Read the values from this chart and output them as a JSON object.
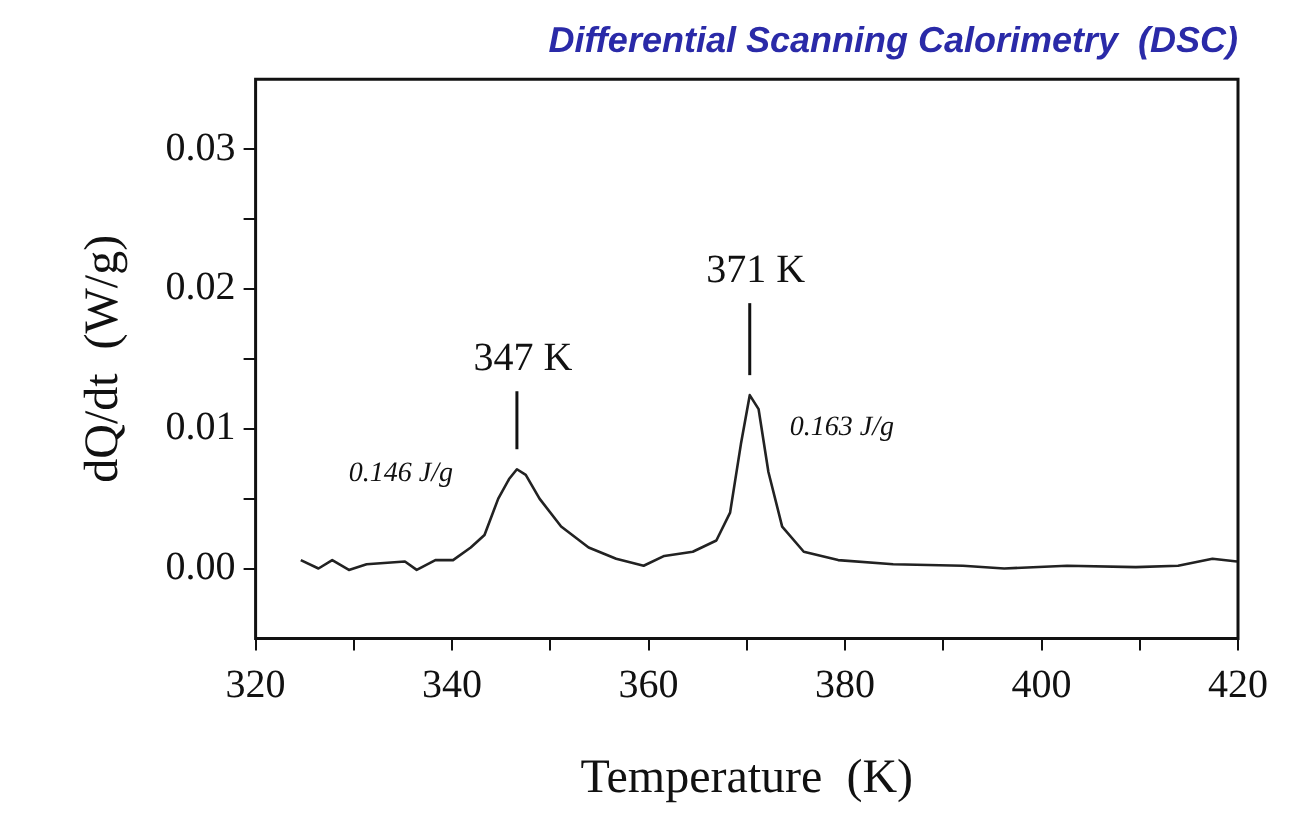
{
  "chart_data": {
    "type": "line",
    "title": "Differential Scanning Calorimetry  (DSC)",
    "xlabel": "Temperature  (K)",
    "ylabel": "dQ/dt  (W/g)",
    "xlim": [
      320,
      420
    ],
    "ylim": [
      -0.005,
      0.035
    ],
    "xticks": [
      320,
      {
        "value": 330,
        "label": null
      },
      340,
      {
        "value": 350,
        "label": null
      },
      360,
      {
        "value": 370,
        "label": null
      },
      380,
      {
        "value": 390,
        "label": null
      },
      400,
      {
        "value": 410,
        "label": null
      },
      420
    ],
    "yticks": [
      {
        "value": 0,
        "label": "0.00"
      },
      {
        "value": 0.005,
        "label": null
      },
      {
        "value": 0.01,
        "label": "0.01"
      },
      {
        "value": 0.015,
        "label": null
      },
      {
        "value": 0.02,
        "label": "0.02"
      },
      {
        "value": 0.025,
        "label": null
      },
      {
        "value": 0.03,
        "label": "0.03"
      }
    ],
    "grid": false,
    "legend": false,
    "marker": "none",
    "line_style": "solid",
    "series": [
      {
        "color": "#222222",
        "x": [
          324.6,
          326.4,
          327.8,
          329.5,
          331.3,
          335.2,
          336.4,
          338.3,
          340.1,
          341.9,
          343.3,
          344.7,
          345.8,
          346.6,
          347.5,
          348.9,
          351.1,
          353.9,
          356.7,
          359.5,
          361.6,
          364.5,
          366.9,
          368.3,
          369.4,
          370.3,
          371.2,
          372.2,
          373.6,
          375.8,
          379.3,
          384.9,
          392.0,
          396.2,
          402.6,
          409.6,
          413.9,
          417.4,
          419.9
        ],
        "values": [
          0.0006,
          0.0,
          0.0006,
          -0.0001,
          0.0003,
          0.0005,
          -0.0001,
          0.0006,
          0.0006,
          0.0015,
          0.0024,
          0.005,
          0.0064,
          0.0071,
          0.0067,
          0.005,
          0.003,
          0.0015,
          0.0007,
          0.0002,
          0.0009,
          0.0012,
          0.002,
          0.004,
          0.0089,
          0.0124,
          0.0114,
          0.0069,
          0.003,
          0.0012,
          0.0006,
          0.0003,
          0.0002,
          0.0,
          0.0002,
          0.0001,
          0.0002,
          0.0007,
          0.0005
        ]
      }
    ],
    "annotations": [
      {
        "text": "347 K",
        "x": 346.6,
        "y": 0.0071
      },
      {
        "text": "371 K",
        "x": 370.3,
        "y": 0.0124
      },
      "0.146 J/g",
      "0.163 J/g"
    ]
  }
}
